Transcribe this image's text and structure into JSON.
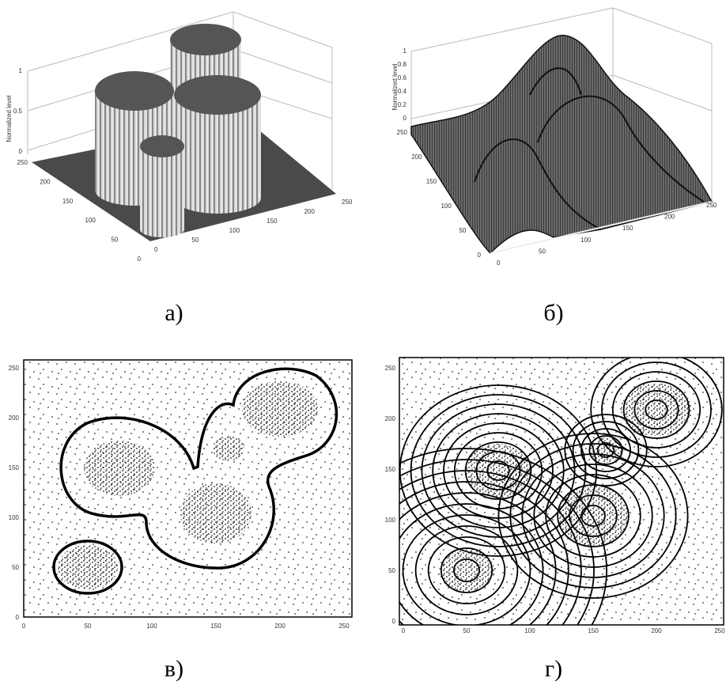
{
  "panels": [
    {
      "caption": "а)",
      "z_label": "Normalized level",
      "z_ticks": [
        "0",
        "0.5",
        "1"
      ],
      "y_ticks": [
        "0",
        "50",
        "100",
        "150",
        "200",
        "250"
      ],
      "x_ticks": [
        "0",
        "50",
        "100",
        "150",
        "200",
        "250"
      ]
    },
    {
      "caption": "б)",
      "z_label": "Normalized level",
      "z_ticks": [
        "0",
        "0.2",
        "0.4",
        "0.6",
        "0.8",
        "1"
      ],
      "y_ticks": [
        "0",
        "50",
        "100",
        "150",
        "200",
        "250"
      ],
      "x_ticks": [
        "0",
        "50",
        "100",
        "150",
        "200",
        "250"
      ]
    },
    {
      "caption": "в)",
      "x_ticks": [
        "0",
        "50",
        "100",
        "150",
        "200",
        "250"
      ],
      "y_ticks": [
        "0",
        "50",
        "100",
        "150",
        "200",
        "250"
      ]
    },
    {
      "caption": "г)",
      "x_ticks": [
        "0",
        "50",
        "100",
        "150",
        "200",
        "250"
      ],
      "y_ticks": [
        "0",
        "50",
        "100",
        "150",
        "200",
        "250"
      ]
    }
  ]
}
